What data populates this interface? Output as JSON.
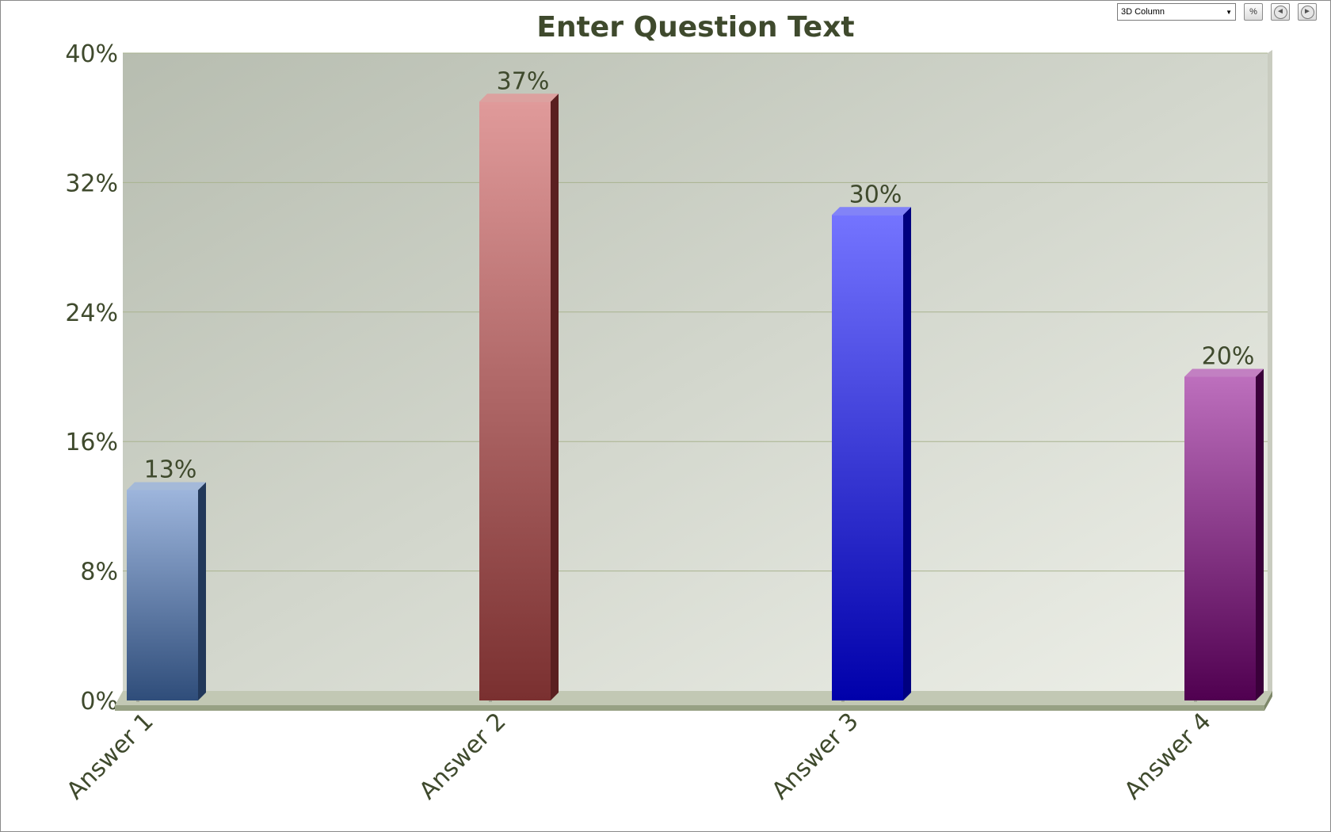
{
  "toolbar": {
    "chart_type_value": "3D Column",
    "percent_button_label": "%",
    "back_icon": "arrow-left-icon",
    "forward_icon": "arrow-right-icon"
  },
  "chart_data": {
    "type": "bar",
    "title": "Enter Question Text",
    "categories": [
      "Answer 1",
      "Answer 2",
      "Answer 3",
      "Answer 4"
    ],
    "values": [
      13,
      37,
      30,
      20
    ],
    "data_labels": [
      "13%",
      "37%",
      "30%",
      "20%"
    ],
    "ylim": [
      0,
      40
    ],
    "yticks": [
      0,
      8,
      16,
      24,
      32,
      40
    ],
    "ytick_labels": [
      "0%",
      "8%",
      "16%",
      "24%",
      "32%",
      "40%"
    ],
    "grid": true,
    "colors": [
      {
        "top": "#9db5dc",
        "bottom": "#2f4d7a",
        "side": "#22385a"
      },
      {
        "top": "#e09a9a",
        "bottom": "#7a3030",
        "side": "#5a2020"
      },
      {
        "top": "#7474ff",
        "bottom": "#0000aa",
        "side": "#000080"
      },
      {
        "top": "#bd6fbd",
        "bottom": "#500050",
        "side": "#3a003a"
      }
    ]
  }
}
